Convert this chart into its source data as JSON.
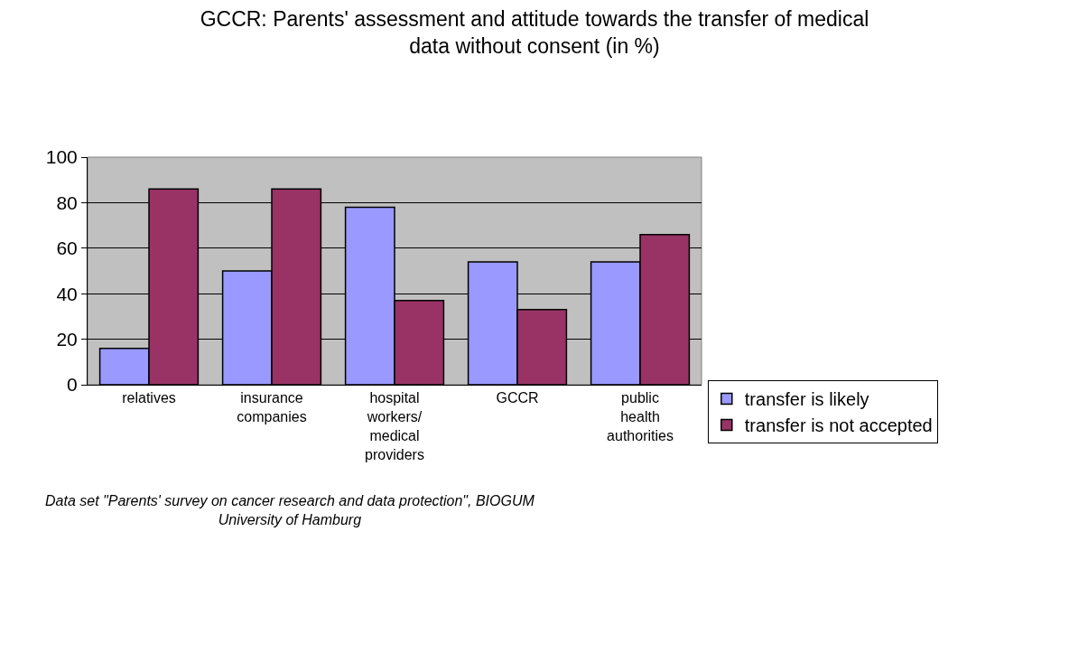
{
  "chart_data": {
    "type": "bar",
    "title": "GCCR: Parents' assessment and attitude towards the transfer of medical data without consent (in %)",
    "categories": [
      "relatives",
      "insurance companies",
      "hospital workers/ medical providers",
      "GCCR",
      "public health authorities"
    ],
    "series": [
      {
        "name": "transfer is likely",
        "color": "#9999ff",
        "values": [
          16,
          50,
          78,
          54,
          54
        ]
      },
      {
        "name": "transfer is not accepted",
        "color": "#993366",
        "values": [
          86,
          86,
          37,
          33,
          66
        ]
      }
    ],
    "ylim": [
      0,
      100
    ],
    "yticks": [
      0,
      20,
      40,
      60,
      80,
      100
    ],
    "grid": "y",
    "legend": "right",
    "annotations": [
      "Data set \"Parents' survey on cancer research and data protection\", BIOGUM University of Hamburg"
    ]
  }
}
